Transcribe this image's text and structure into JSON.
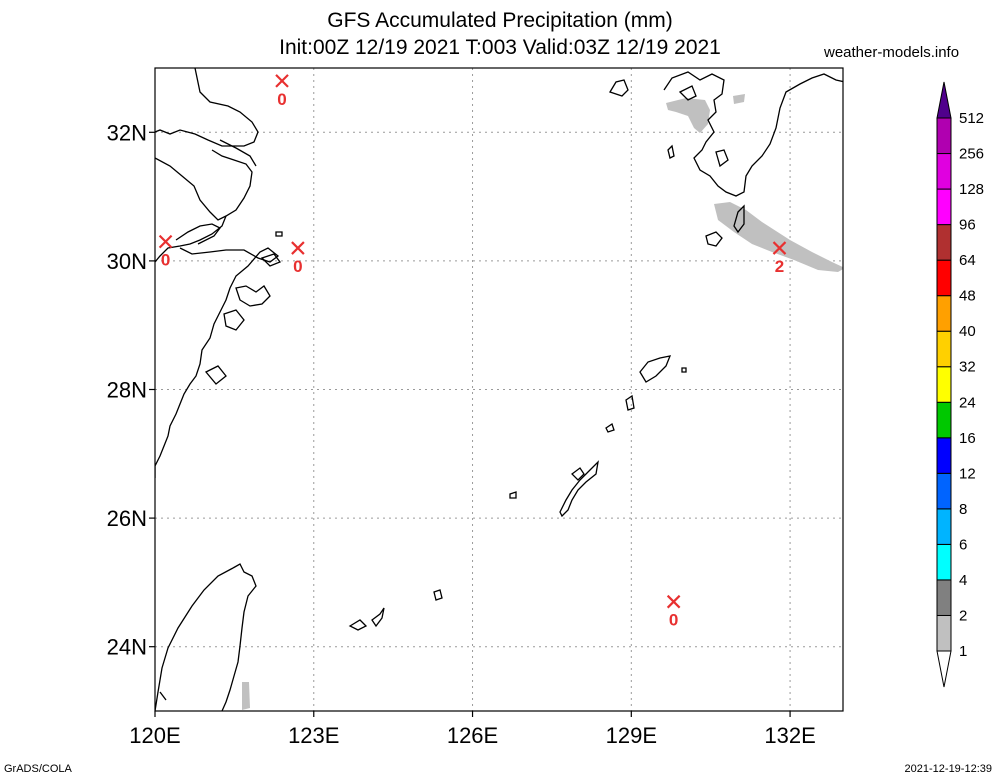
{
  "title_line1": "GFS Accumulated Precipitation (mm)",
  "title_line2": "Init:00Z 12/19 2021 T:003 Valid:03Z 12/19 2021",
  "site": "weather-models.info",
  "credit": "GrADS/COLA",
  "timestamp": "2021-12-19-12:39",
  "map": {
    "lon_ticks": [
      "120E",
      "123E",
      "126E",
      "129E",
      "132E"
    ],
    "lat_ticks": [
      "24N",
      "26N",
      "28N",
      "30N",
      "32N"
    ],
    "stations": [
      {
        "lon": 122.4,
        "lat": 32.8,
        "value": "0"
      },
      {
        "lon": 120.2,
        "lat": 30.3,
        "value": "0"
      },
      {
        "lon": 122.7,
        "lat": 30.2,
        "value": "0"
      },
      {
        "lon": 131.8,
        "lat": 30.2,
        "value": "2"
      },
      {
        "lon": 129.8,
        "lat": 24.7,
        "value": "0"
      }
    ]
  },
  "colorbar": {
    "levels": [
      "1",
      "2",
      "4",
      "6",
      "8",
      "12",
      "16",
      "24",
      "32",
      "40",
      "48",
      "64",
      "96",
      "128",
      "256",
      "512"
    ],
    "colors": [
      "#c0c0c0",
      "#808080",
      "#00ffff",
      "#00b4ff",
      "#0064ff",
      "#0000ff",
      "#00c800",
      "#ffff00",
      "#ffd000",
      "#ffa000",
      "#ff0000",
      "#b03030",
      "#ff00ff",
      "#e000e0",
      "#b000b0",
      "#800090",
      "#50008c"
    ]
  }
}
